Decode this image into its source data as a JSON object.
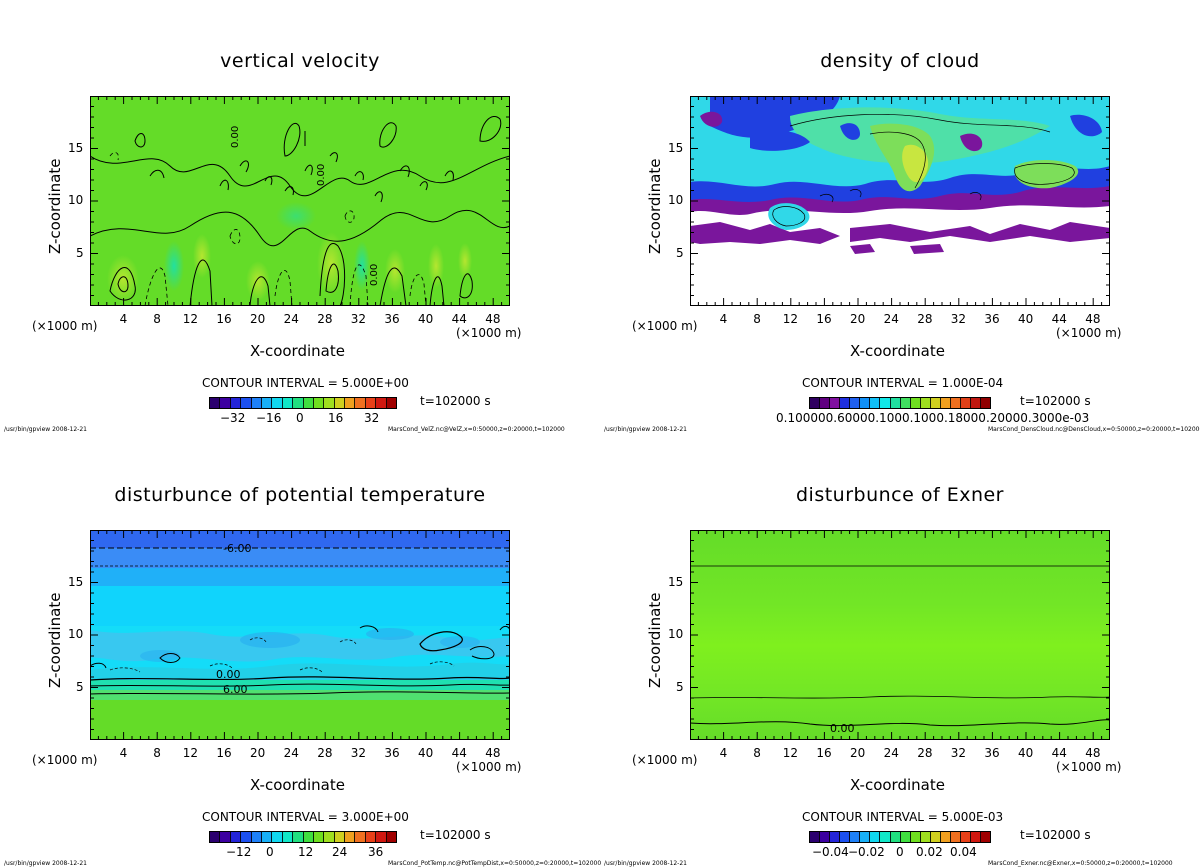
{
  "panels": [
    {
      "title": "vertical velocity",
      "contour_interval": "CONTOUR INTERVAL = 5.000E+00",
      "time": "t=102000 s",
      "colorbar_ticks": [
        "−32",
        "−16",
        "0",
        "16",
        "32"
      ],
      "footer_left": "/usr/bin/gpview  2008-12-21",
      "footer_right": "MarsCond_VelZ.nc@VelZ,x=0:50000,z=0:20000,t=102000",
      "contour_labels": [
        "0.00",
        "0.00",
        "0.00"
      ]
    },
    {
      "title": "density of cloud",
      "contour_interval": "CONTOUR INTERVAL = 1.000E-04",
      "time": "t=102000 s",
      "colorbar_ticks": [
        "0.100000.60000.1000.1000.18000.20000.3000e-03"
      ],
      "footer_left": "/usr/bin/gpview  2008-12-21",
      "footer_right": "MarsCond_DensCloud.nc@DensCloud,x=0:50000,z=0:20000,t=102000",
      "contour_labels": []
    },
    {
      "title": "disturbunce of potential temperature",
      "contour_interval": "CONTOUR INTERVAL = 3.000E+00",
      "time": "t=102000 s",
      "colorbar_ticks": [
        "−12",
        "0",
        "12",
        "24",
        "36"
      ],
      "footer_left": "/usr/bin/gpview  2008-12-21",
      "footer_right": "MarsCond_PotTemp.nc@PotTempDist,x=0:50000,z=0:20000,t=102000",
      "contour_labels": [
        "-6.00",
        "0.00",
        "6.00"
      ]
    },
    {
      "title": "disturbunce of Exner",
      "contour_interval": "CONTOUR INTERVAL = 5.000E-03",
      "time": "t=102000 s",
      "colorbar_ticks": [
        "−0.04",
        "−0.02",
        "0",
        "0.02",
        "0.04"
      ],
      "footer_left": "/usr/bin/gpview  2008-12-21",
      "footer_right": "MarsCond_Exner.nc@Exner,x=0:50000,z=0:20000,t=102000",
      "contour_labels": [
        "0.00"
      ]
    }
  ],
  "axes": {
    "xlabel": "X-coordinate",
    "ylabel": "Z-coordinate",
    "x_unit": "(×1000 m)",
    "x_ticks": [
      "4",
      "8",
      "12",
      "16",
      "20",
      "24",
      "28",
      "32",
      "36",
      "40",
      "44",
      "48"
    ],
    "z_ticks": [
      "5",
      "10",
      "15"
    ]
  },
  "colors": {
    "background": "#ffffff",
    "field_green": "#64dc28",
    "field_bright_green": "#7ff01e",
    "cloud_purple": "#7a169c",
    "cloud_cyan": "#30d8e8",
    "cloud_blue": "#2040e0",
    "temp_blue": "#3070f0",
    "temp_cyan": "#08e8ff"
  },
  "chart_data": [
    {
      "type": "heatmap",
      "title": "vertical velocity",
      "xlabel": "X-coordinate",
      "ylabel": "Z-coordinate",
      "x_unit": "×1000 m",
      "xlim": [
        0,
        50
      ],
      "ylim": [
        0,
        20
      ],
      "z_ticks": [
        5,
        10,
        15
      ],
      "x_ticks": [
        4,
        8,
        12,
        16,
        20,
        24,
        28,
        32,
        36,
        40,
        44,
        48
      ],
      "contour_interval": 5.0,
      "colorbar_ticks": [
        -32,
        -16,
        0,
        16,
        32
      ],
      "time_s": 102000
    },
    {
      "type": "heatmap",
      "title": "density of cloud",
      "xlabel": "X-coordinate",
      "ylabel": "Z-coordinate",
      "x_unit": "×1000 m",
      "xlim": [
        0,
        50
      ],
      "ylim": [
        0,
        20
      ],
      "z_ticks": [
        5,
        10,
        15
      ],
      "x_ticks": [
        4,
        8,
        12,
        16,
        20,
        24,
        28,
        32,
        36,
        40,
        44,
        48
      ],
      "contour_interval": 0.0001,
      "time_s": 102000
    },
    {
      "type": "heatmap",
      "title": "disturbunce of potential temperature",
      "xlabel": "X-coordinate",
      "ylabel": "Z-coordinate",
      "x_unit": "×1000 m",
      "xlim": [
        0,
        50
      ],
      "ylim": [
        0,
        20
      ],
      "z_ticks": [
        5,
        10,
        15
      ],
      "x_ticks": [
        4,
        8,
        12,
        16,
        20,
        24,
        28,
        32,
        36,
        40,
        44,
        48
      ],
      "contour_interval": 3.0,
      "colorbar_ticks": [
        -12,
        0,
        12,
        24,
        36
      ],
      "time_s": 102000
    },
    {
      "type": "heatmap",
      "title": "disturbunce of Exner",
      "xlabel": "X-coordinate",
      "ylabel": "Z-coordinate",
      "x_unit": "×1000 m",
      "xlim": [
        0,
        50
      ],
      "ylim": [
        0,
        20
      ],
      "z_ticks": [
        5,
        10,
        15
      ],
      "x_ticks": [
        4,
        8,
        12,
        16,
        20,
        24,
        28,
        32,
        36,
        40,
        44,
        48
      ],
      "contour_interval": 0.005,
      "colorbar_ticks": [
        -0.04,
        -0.02,
        0,
        0.02,
        0.04
      ],
      "time_s": 102000
    }
  ]
}
